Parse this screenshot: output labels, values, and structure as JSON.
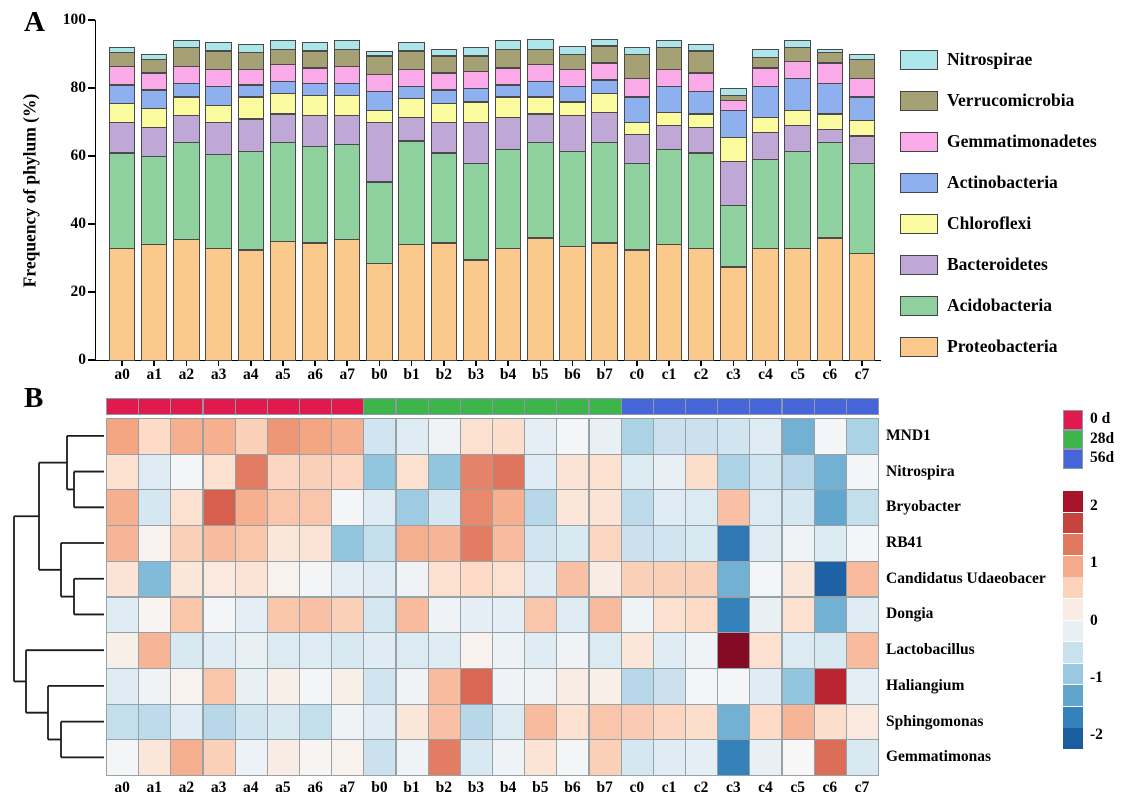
{
  "chart_data": [
    {
      "type": "bar",
      "stacked": true,
      "panel_label": "A",
      "ylabel": "Frequency of phylum (%)",
      "ylim": [
        0,
        100
      ],
      "yticks": [
        0,
        20,
        40,
        60,
        80,
        100
      ],
      "categories": [
        "a0",
        "a1",
        "a2",
        "a3",
        "a4",
        "a5",
        "a6",
        "a7",
        "b0",
        "b1",
        "b2",
        "b3",
        "b4",
        "b5",
        "b6",
        "b7",
        "c0",
        "c1",
        "c2",
        "c3",
        "c4",
        "c5",
        "c6",
        "c7"
      ],
      "series": [
        {
          "name": "Proteobacteria",
          "color": "#FBC98C",
          "values": [
            33,
            34,
            35.5,
            33,
            32.5,
            35,
            34.5,
            35.5,
            28.5,
            34,
            34.5,
            29.5,
            33,
            36,
            33.5,
            34.5,
            32.5,
            34,
            33,
            27.5,
            33,
            33,
            36,
            31.5
          ]
        },
        {
          "name": "Acidobacteria",
          "color": "#8FD19E",
          "values": [
            28,
            26,
            28.5,
            27.5,
            29,
            29,
            28.5,
            28,
            24,
            30.5,
            26.5,
            28.5,
            29,
            28,
            28,
            29.5,
            25.5,
            28,
            28,
            18,
            26,
            28.5,
            28,
            26.5
          ]
        },
        {
          "name": "Bacteroidetes",
          "color": "#BFA8D6",
          "values": [
            9,
            8.5,
            8,
            9.5,
            9.5,
            8.5,
            9,
            8.5,
            17.5,
            7,
            9,
            12,
            9.5,
            8.5,
            10.5,
            9,
            8.5,
            7,
            7.5,
            13,
            8,
            7.5,
            4,
            8
          ]
        },
        {
          "name": "Chloroflexi",
          "color": "#FAFA9E",
          "values": [
            5.5,
            5.5,
            5.5,
            5,
            6.5,
            6,
            6,
            6,
            3.5,
            5.5,
            5.5,
            6,
            6,
            5,
            4,
            5.5,
            3.5,
            4,
            4,
            7,
            4.5,
            4.5,
            4.5,
            4.5
          ]
        },
        {
          "name": "Actinobacteria",
          "color": "#8FB0EE",
          "values": [
            5.5,
            5.5,
            4,
            5.5,
            3.5,
            3.5,
            3.5,
            3.5,
            5.5,
            3.5,
            4,
            4,
            3.5,
            4.5,
            4.5,
            4,
            7.5,
            7.5,
            6.5,
            8,
            9,
            9.5,
            9,
            7
          ]
        },
        {
          "name": "Gemmatimonadetes",
          "color": "#FAAAE8",
          "values": [
            5.5,
            5,
            5,
            5,
            4.5,
            5,
            4.5,
            5,
            5,
            5,
            5,
            5,
            5,
            5,
            5,
            5,
            5.5,
            5,
            5.5,
            3,
            5.5,
            5,
            6,
            5.5
          ]
        },
        {
          "name": "Verrucomicrobia",
          "color": "#A5A175",
          "values": [
            4,
            4,
            5.5,
            5.5,
            5,
            4.5,
            5,
            5,
            5.5,
            5.5,
            5,
            4.5,
            5.5,
            4.5,
            4.5,
            5,
            7,
            6.5,
            6.5,
            1.5,
            3,
            4,
            3,
            5.5
          ]
        },
        {
          "name": "Nitrospirae",
          "color": "#ACE5EA",
          "values": [
            1.5,
            1.5,
            2,
            2.5,
            2.5,
            2.5,
            2.5,
            2.5,
            1.5,
            2.5,
            2,
            2.5,
            2.5,
            3,
            2.5,
            2,
            2,
            2,
            2,
            2,
            2.5,
            2,
            1,
            1.5
          ]
        }
      ],
      "legend_top_to_bottom": [
        "Nitrospirae",
        "Verrucomicrobia",
        "Gemmatimonadetes",
        "Actinobacteria",
        "Chloroflexi",
        "Bacteroidetes",
        "Acidobacteria",
        "Proteobacteria"
      ]
    },
    {
      "type": "heatmap",
      "panel_label": "B",
      "columns": [
        "a0",
        "a1",
        "a2",
        "a3",
        "a4",
        "a5",
        "a6",
        "a7",
        "b0",
        "b1",
        "b2",
        "b3",
        "b4",
        "b5",
        "b6",
        "b7",
        "c0",
        "c1",
        "c2",
        "c3",
        "c4",
        "c5",
        "c6",
        "c7"
      ],
      "rows": [
        "MND1",
        "Nitrospira",
        "Bryobacter",
        "RB41",
        "Candidatus Udaeobacer",
        "Dongia",
        "Lactobacillus",
        "Haliangium",
        "Sphingomonas",
        "Gemmatimonas"
      ],
      "values": [
        [
          1.0,
          0.5,
          0.9,
          0.9,
          0.6,
          1.1,
          1.0,
          0.9,
          -0.5,
          -0.3,
          -0.1,
          0.4,
          0.45,
          -0.25,
          -0.05,
          -0.2,
          -0.8,
          -0.55,
          -0.55,
          -0.5,
          -0.3,
          -1.2,
          -0.05,
          -0.8
        ],
        [
          0.4,
          -0.3,
          -0.05,
          0.4,
          1.3,
          0.55,
          0.6,
          0.55,
          -1.0,
          0.4,
          -1.0,
          1.25,
          1.35,
          -0.3,
          0.35,
          0.4,
          -0.35,
          -0.2,
          0.45,
          -0.8,
          -0.5,
          -0.7,
          -1.2,
          -0.05
        ],
        [
          0.9,
          -0.45,
          0.4,
          1.5,
          0.9,
          0.7,
          0.7,
          -0.05,
          -0.3,
          -0.9,
          -0.45,
          1.2,
          0.9,
          -0.7,
          0.3,
          0.35,
          -0.65,
          -0.3,
          -0.35,
          0.75,
          -0.35,
          -0.45,
          -1.3,
          -0.6
        ],
        [
          0.85,
          0.1,
          0.6,
          0.8,
          0.7,
          0.3,
          0.35,
          -1.0,
          -0.6,
          0.9,
          0.85,
          1.3,
          0.8,
          -0.5,
          -0.4,
          0.55,
          -0.55,
          -0.5,
          -0.4,
          -1.8,
          -0.3,
          -0.1,
          -0.35,
          -0.05
        ],
        [
          0.35,
          -1.1,
          0.3,
          0.25,
          0.35,
          0.1,
          -0.05,
          -0.25,
          -0.3,
          -0.1,
          0.4,
          0.5,
          0.4,
          -0.3,
          0.75,
          0.2,
          0.6,
          0.6,
          0.6,
          -1.2,
          -0.05,
          0.3,
          -2.05,
          0.8
        ],
        [
          -0.3,
          0.05,
          0.7,
          -0.05,
          -0.25,
          0.7,
          0.75,
          0.6,
          -0.45,
          0.8,
          -0.1,
          -0.25,
          -0.25,
          0.7,
          -0.3,
          0.8,
          -0.1,
          0.4,
          0.5,
          -1.7,
          -0.2,
          0.4,
          -1.2,
          -0.3
        ],
        [
          0.15,
          0.85,
          -0.4,
          -0.3,
          -0.2,
          -0.35,
          -0.3,
          -0.4,
          -0.3,
          -0.35,
          -0.3,
          0.1,
          -0.15,
          -0.3,
          -0.1,
          -0.35,
          0.3,
          -0.3,
          -0.1,
          2.3,
          0.4,
          -0.35,
          -0.4,
          0.8
        ],
        [
          -0.3,
          -0.1,
          0.1,
          0.7,
          -0.2,
          0.15,
          -0.05,
          0.15,
          -0.5,
          -0.1,
          0.8,
          1.45,
          -0.1,
          -0.1,
          0.2,
          0.15,
          -0.7,
          -0.55,
          -0.05,
          -0.05,
          -0.3,
          -1.0,
          1.9,
          -0.25
        ],
        [
          -0.6,
          -0.65,
          -0.3,
          -0.7,
          -0.5,
          -0.4,
          -0.6,
          -0.1,
          -0.3,
          0.3,
          0.75,
          -0.7,
          -0.35,
          0.8,
          0.4,
          0.7,
          0.65,
          0.55,
          0.45,
          -1.2,
          0.5,
          0.85,
          0.45,
          0.25
        ],
        [
          -0.05,
          0.3,
          0.9,
          0.6,
          -0.15,
          0.2,
          0.05,
          0.1,
          -0.55,
          -0.1,
          1.3,
          -0.4,
          -0.1,
          0.35,
          -0.05,
          0.6,
          -0.45,
          -0.3,
          -0.25,
          -1.7,
          -0.2,
          0.0,
          1.4,
          -0.4
        ]
      ],
      "column_groups": [
        {
          "label": "0 d",
          "color": "#E01A4C",
          "span": 8
        },
        {
          "label": "28d",
          "color": "#3DB54B",
          "span": 8
        },
        {
          "label": "56d",
          "color": "#4565D9",
          "span": 8
        }
      ],
      "colorbar": {
        "ticks": [
          2,
          1,
          0,
          -1,
          -2
        ],
        "domain_max": 2.27,
        "anchors": [
          [
            2.5,
            "#67001f"
          ],
          [
            2.0,
            "#b2182b"
          ],
          [
            1.5,
            "#d6604d"
          ],
          [
            1.0,
            "#f4a582"
          ],
          [
            0.5,
            "#fddbc7"
          ],
          [
            0.0,
            "#f7f7f7"
          ],
          [
            -0.5,
            "#d1e5f0"
          ],
          [
            -1.0,
            "#92c5de"
          ],
          [
            -1.5,
            "#4393c3"
          ],
          [
            -2.0,
            "#2166ac"
          ],
          [
            -2.5,
            "#053061"
          ]
        ]
      },
      "row_dendrogram": {
        "x": 14,
        "children": [
          {
            "x": 39,
            "children": [
              {
                "x": 67,
                "children": [
                  {
                    "leaf": "MND1"
                  },
                  {
                    "x": 74,
                    "children": [
                      {
                        "leaf": "Nitrospira"
                      },
                      {
                        "leaf": "Bryobacter"
                      }
                    ]
                  }
                ]
              },
              {
                "x": 61,
                "children": [
                  {
                    "leaf": "RB41"
                  },
                  {
                    "x": 74,
                    "children": [
                      {
                        "leaf": "Candidatus Udaeobacer"
                      },
                      {
                        "leaf": "Dongia"
                      }
                    ]
                  }
                ]
              }
            ]
          },
          {
            "x": 26,
            "children": [
              {
                "leaf": "Lactobacillus"
              },
              {
                "x": 48,
                "children": [
                  {
                    "leaf": "Haliangium"
                  },
                  {
                    "x": 61,
                    "children": [
                      {
                        "leaf": "Sphingomonas"
                      },
                      {
                        "leaf": "Gemmatimonas"
                      }
                    ]
                  }
                ]
              }
            ]
          }
        ]
      }
    }
  ]
}
